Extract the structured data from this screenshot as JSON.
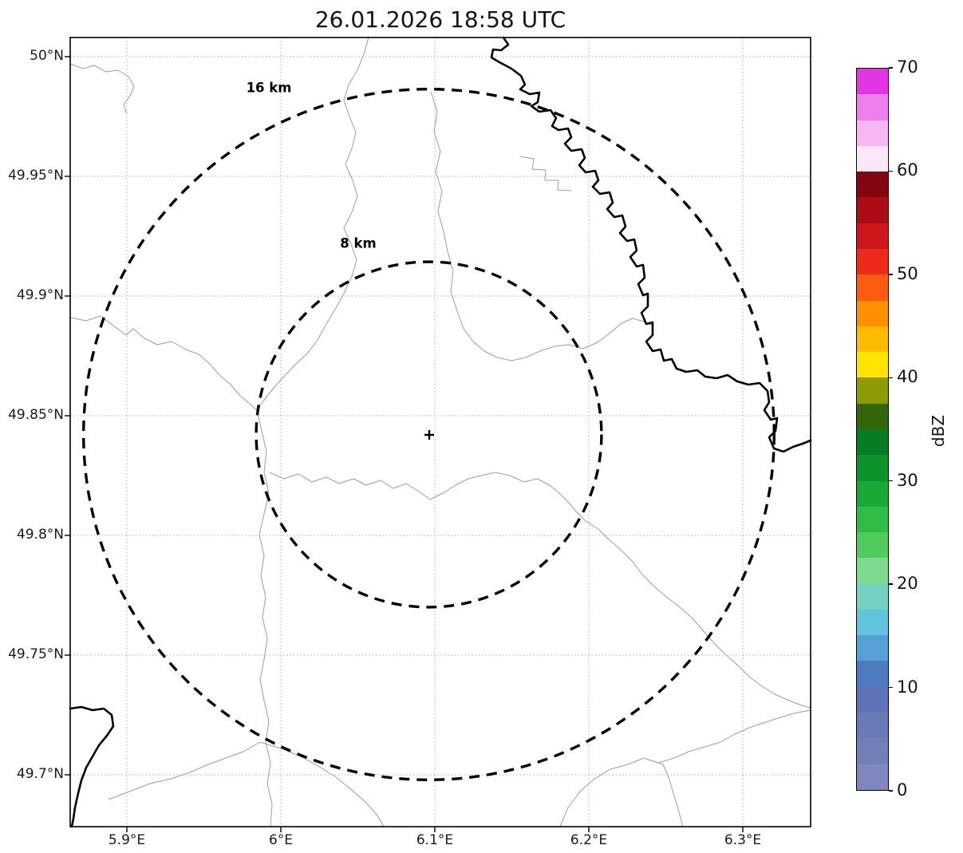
{
  "figure": {
    "title": "26.01.2026 18:58 UTC"
  },
  "axes": {
    "lon_ticks": [
      {
        "value": 5.9,
        "label": "5.9°E"
      },
      {
        "value": 6.0,
        "label": "6°E"
      },
      {
        "value": 6.1,
        "label": "6.1°E"
      },
      {
        "value": 6.2,
        "label": "6.2°E"
      },
      {
        "value": 6.3,
        "label": "6.3°E"
      }
    ],
    "lat_ticks": [
      {
        "value": 50.0,
        "label": "50°N"
      },
      {
        "value": 49.95,
        "label": "49.95°N"
      },
      {
        "value": 49.9,
        "label": "49.9°N"
      },
      {
        "value": 49.85,
        "label": "49.85°N"
      },
      {
        "value": 49.8,
        "label": "49.8°N"
      },
      {
        "value": 49.75,
        "label": "49.75°N"
      },
      {
        "value": 49.7,
        "label": "49.7°N"
      }
    ]
  },
  "range_rings": [
    {
      "label": "16 km",
      "radius_km": 16
    },
    {
      "label": "8 km",
      "radius_km": 8
    }
  ],
  "radar_site": {
    "marker": "+"
  },
  "colorbar": {
    "label": "dBZ",
    "min": 0,
    "max": 70,
    "ticks": [
      {
        "value": 70,
        "label": "70"
      },
      {
        "value": 60,
        "label": "60"
      },
      {
        "value": 50,
        "label": "50"
      },
      {
        "value": 40,
        "label": "40"
      },
      {
        "value": 30,
        "label": "30"
      },
      {
        "value": 20,
        "label": "20"
      },
      {
        "value": 10,
        "label": "10"
      },
      {
        "value": 0,
        "label": "0"
      }
    ],
    "segments_bottom_to_top": [
      "#7e88be",
      "#747fb9",
      "#6a79b7",
      "#6073ba",
      "#4d7cc2",
      "#57a0d6",
      "#62c4dc",
      "#74d2c2",
      "#7eda8e",
      "#50cc5c",
      "#2fbd45",
      "#1aa936",
      "#0d932c",
      "#067c24",
      "#33660a",
      "#8d9b04",
      "#ffe400",
      "#ffbb00",
      "#ff9100",
      "#fb5c0d",
      "#ee2a1b",
      "#cf161a",
      "#ab0c15",
      "#83050f",
      "#fbe6fa",
      "#f6b7f3",
      "#f07fee",
      "#e336e3"
    ]
  },
  "chart_data": {
    "type": "heatmap",
    "title": "26.01.2026 18:58 UTC",
    "xlabel": "",
    "ylabel": "",
    "x_ticks": [
      "5.9°E",
      "6°E",
      "6.1°E",
      "6.2°E",
      "6.3°E"
    ],
    "y_ticks": [
      "50°N",
      "49.95°N",
      "49.9°N",
      "49.85°N",
      "49.8°N",
      "49.75°N",
      "49.7°N"
    ],
    "xlim": [
      5.863,
      6.344
    ],
    "ylim": [
      49.678,
      50.008
    ],
    "grid": "dotted",
    "colorbar": {
      "label": "dBZ",
      "range": [
        0,
        70
      ],
      "tick_step": 10
    },
    "annotations": [
      "16 km range ring (dashed)",
      "8 km range ring (dashed)",
      "radar site marker + at ring center"
    ],
    "values": "no reflectivity echoes visible (radar image empty); base map shows administrative boundaries and a national border river"
  }
}
